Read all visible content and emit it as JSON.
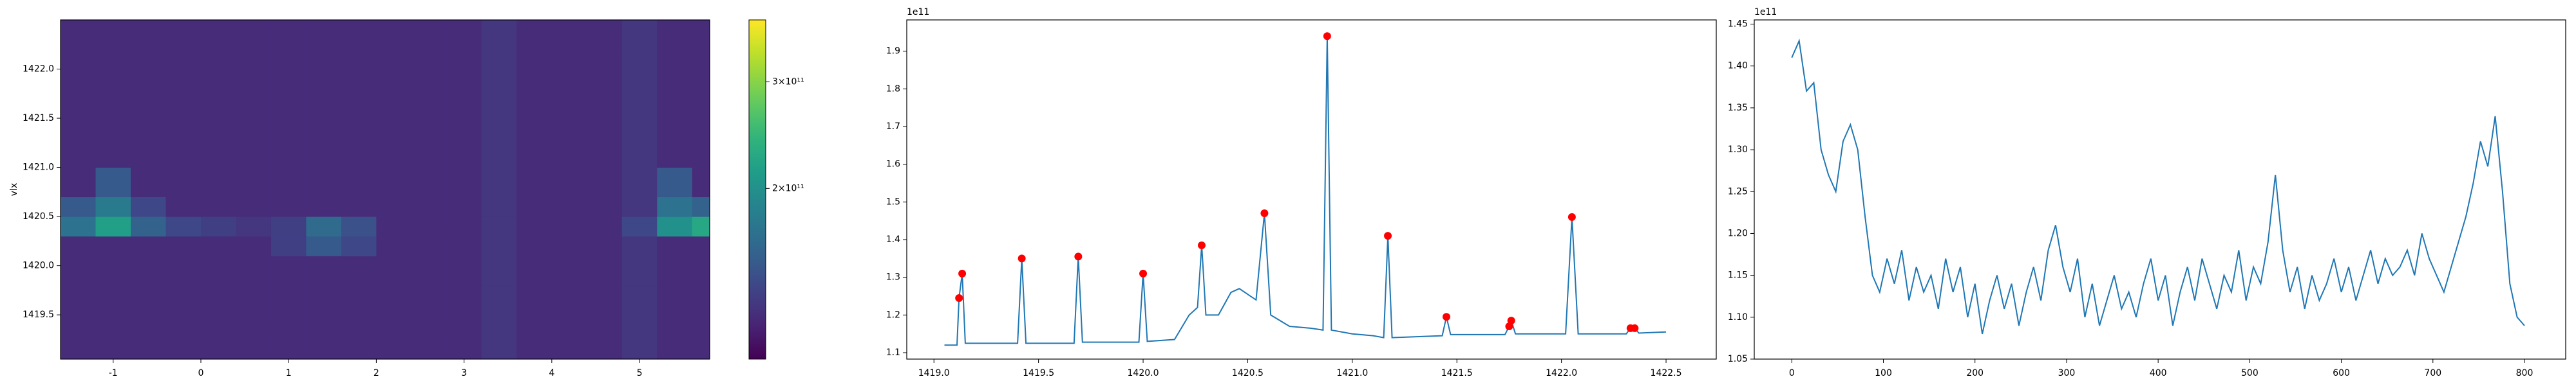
{
  "chart_data": [
    {
      "type": "heatmap",
      "ylabel": "vlx",
      "x_edges": [
        -1.6,
        -1.2,
        -0.8,
        -0.4,
        0,
        0.4,
        0.8,
        1.2,
        1.6,
        2.0,
        2.4,
        2.8,
        3.2,
        3.6,
        4.0,
        4.4,
        4.8,
        5.2,
        5.6,
        5.8
      ],
      "y_edges": [
        1419.05,
        1419.4,
        1419.8,
        1420.1,
        1420.3,
        1420.5,
        1420.7,
        1421.0,
        1421.4,
        1421.8,
        1422.2,
        1422.5
      ],
      "values": [
        [
          80000000000.0,
          80000000000.0,
          80000000000.0,
          80000000000.0,
          80000000000.0,
          80000000000.0,
          80000000000.0,
          80000000000.0,
          80000000000.0,
          80000000000.0,
          80000000000.0,
          80000000000.0,
          90000000000.0,
          80000000000.0,
          80000000000.0,
          80000000000.0,
          90000000000.0,
          80000000000.0,
          80000000000.0
        ],
        [
          80000000000.0,
          80000000000.0,
          80000000000.0,
          80000000000.0,
          80000000000.0,
          80000000000.0,
          80000000000.0,
          80000000000.0,
          80000000000.0,
          80000000000.0,
          80000000000.0,
          80000000000.0,
          90000000000.0,
          80000000000.0,
          80000000000.0,
          80000000000.0,
          90000000000.0,
          80000000000.0,
          80000000000.0
        ],
        [
          80000000000.0,
          80000000000.0,
          80000000000.0,
          80000000000.0,
          80000000000.0,
          80000000000.0,
          80000000000.0,
          80000000000.0,
          80000000000.0,
          80000000000.0,
          80000000000.0,
          80000000000.0,
          90000000000.0,
          80000000000.0,
          80000000000.0,
          80000000000.0,
          90000000000.0,
          80000000000.0,
          80000000000.0
        ],
        [
          80000000000.0,
          80000000000.0,
          80000000000.0,
          80000000000.0,
          80000000000.0,
          80000000000.0,
          100000000000.0,
          130000000000.0,
          110000000000.0,
          80000000000.0,
          80000000000.0,
          80000000000.0,
          90000000000.0,
          80000000000.0,
          80000000000.0,
          80000000000.0,
          90000000000.0,
          80000000000.0,
          80000000000.0
        ],
        [
          160000000000.0,
          220000000000.0,
          140000000000.0,
          110000000000.0,
          100000000000.0,
          90000000000.0,
          100000000000.0,
          150000000000.0,
          120000000000.0,
          80000000000.0,
          80000000000.0,
          80000000000.0,
          90000000000.0,
          80000000000.0,
          80000000000.0,
          80000000000.0,
          110000000000.0,
          200000000000.0,
          230000000000.0
        ],
        [
          130000000000.0,
          170000000000.0,
          110000000000.0,
          80000000000.0,
          80000000000.0,
          80000000000.0,
          80000000000.0,
          80000000000.0,
          80000000000.0,
          80000000000.0,
          80000000000.0,
          80000000000.0,
          90000000000.0,
          80000000000.0,
          80000000000.0,
          80000000000.0,
          90000000000.0,
          160000000000.0,
          140000000000.0
        ],
        [
          80000000000.0,
          130000000000.0,
          80000000000.0,
          80000000000.0,
          80000000000.0,
          80000000000.0,
          80000000000.0,
          80000000000.0,
          80000000000.0,
          80000000000.0,
          80000000000.0,
          80000000000.0,
          90000000000.0,
          80000000000.0,
          80000000000.0,
          80000000000.0,
          90000000000.0,
          130000000000.0,
          80000000000.0
        ],
        [
          80000000000.0,
          80000000000.0,
          80000000000.0,
          80000000000.0,
          80000000000.0,
          80000000000.0,
          80000000000.0,
          80000000000.0,
          80000000000.0,
          80000000000.0,
          80000000000.0,
          80000000000.0,
          90000000000.0,
          80000000000.0,
          80000000000.0,
          80000000000.0,
          90000000000.0,
          80000000000.0,
          80000000000.0
        ],
        [
          80000000000.0,
          80000000000.0,
          80000000000.0,
          80000000000.0,
          80000000000.0,
          80000000000.0,
          80000000000.0,
          80000000000.0,
          80000000000.0,
          80000000000.0,
          80000000000.0,
          80000000000.0,
          90000000000.0,
          80000000000.0,
          80000000000.0,
          80000000000.0,
          90000000000.0,
          80000000000.0,
          80000000000.0
        ],
        [
          80000000000.0,
          80000000000.0,
          80000000000.0,
          80000000000.0,
          80000000000.0,
          80000000000.0,
          80000000000.0,
          80000000000.0,
          80000000000.0,
          80000000000.0,
          80000000000.0,
          80000000000.0,
          90000000000.0,
          80000000000.0,
          80000000000.0,
          80000000000.0,
          90000000000.0,
          80000000000.0,
          80000000000.0
        ],
        [
          80000000000.0,
          80000000000.0,
          80000000000.0,
          80000000000.0,
          80000000000.0,
          80000000000.0,
          80000000000.0,
          80000000000.0,
          80000000000.0,
          80000000000.0,
          80000000000.0,
          80000000000.0,
          90000000000.0,
          80000000000.0,
          80000000000.0,
          80000000000.0,
          90000000000.0,
          80000000000.0,
          80000000000.0
        ]
      ],
      "xlim": [
        -1.6,
        5.8
      ],
      "ylim": [
        1419.05,
        1422.5
      ],
      "xticks": [
        -1,
        0,
        1,
        2,
        3,
        4,
        5
      ],
      "yticks": [
        1419.5,
        {
          "value": 1420.0,
          "label": "1420.0"
        },
        1420.5,
        {
          "value": 1421.0,
          "label": "1421.0"
        },
        1421.5,
        {
          "value": 1422.0,
          "label": "1422.0"
        }
      ],
      "colormap": "viridis",
      "clim": [
        40000000000.0,
        358000000000.0
      ],
      "colorbar_ticks": [
        {
          "value": 200000000000.0,
          "label": "2×10¹¹"
        },
        {
          "value": 300000000000.0,
          "label": "3×10¹¹"
        }
      ]
    },
    {
      "type": "line",
      "offset_label": "1e11",
      "xlim": [
        1418.87,
        1422.74
      ],
      "ylim": [
        1.083,
        1.983
      ],
      "xticks": [
        {
          "value": 1419.0,
          "label": "1419.0"
        },
        1419.5,
        {
          "value": 1420.0,
          "label": "1420.0"
        },
        1420.5,
        {
          "value": 1421.0,
          "label": "1421.0"
        },
        1421.5,
        {
          "value": 1422.0,
          "label": "1422.0"
        },
        1422.5
      ],
      "yticks": [
        1.1,
        1.2,
        1.3,
        1.4,
        1.5,
        1.6,
        1.7,
        1.8,
        1.9
      ],
      "line": {
        "color": "#1f77b4",
        "x": [
          1419.05,
          1419.11,
          1419.12,
          1419.135,
          1419.15,
          1419.4,
          1419.42,
          1419.44,
          1419.67,
          1419.69,
          1419.71,
          1419.98,
          1420.0,
          1420.02,
          1420.15,
          1420.22,
          1420.26,
          1420.28,
          1420.3,
          1420.36,
          1420.42,
          1420.46,
          1420.54,
          1420.58,
          1420.61,
          1420.7,
          1420.8,
          1420.86,
          1420.88,
          1420.9,
          1421.0,
          1421.1,
          1421.15,
          1421.17,
          1421.19,
          1421.43,
          1421.45,
          1421.47,
          1421.73,
          1421.75,
          1421.76,
          1421.78,
          1422.02,
          1422.05,
          1422.08,
          1422.31,
          1422.33,
          1422.35,
          1422.37,
          1422.5
        ],
        "values": [
          1.12,
          1.12,
          1.245,
          1.31,
          1.125,
          1.125,
          1.35,
          1.125,
          1.125,
          1.355,
          1.128,
          1.128,
          1.31,
          1.13,
          1.135,
          1.2,
          1.22,
          1.385,
          1.2,
          1.2,
          1.26,
          1.27,
          1.24,
          1.47,
          1.2,
          1.17,
          1.165,
          1.16,
          1.94,
          1.16,
          1.15,
          1.145,
          1.14,
          1.41,
          1.14,
          1.145,
          1.195,
          1.148,
          1.148,
          1.17,
          1.185,
          1.15,
          1.15,
          1.46,
          1.15,
          1.15,
          1.165,
          1.165,
          1.152,
          1.155
        ]
      },
      "peaks": {
        "color": "#ff0000",
        "x": [
          1419.12,
          1419.135,
          1419.42,
          1419.69,
          1420.0,
          1420.28,
          1420.58,
          1420.88,
          1421.17,
          1421.45,
          1421.75,
          1421.76,
          1422.05,
          1422.33,
          1422.35
        ],
        "values": [
          1.245,
          1.31,
          1.35,
          1.355,
          1.31,
          1.385,
          1.47,
          1.94,
          1.41,
          1.195,
          1.17,
          1.185,
          1.46,
          1.165,
          1.165
        ]
      }
    },
    {
      "type": "line",
      "offset_label": "1e11",
      "xlim": [
        -41,
        845
      ],
      "ylim": [
        1.05,
        1.455
      ],
      "xticks": [
        0,
        100,
        200,
        300,
        400,
        500,
        600,
        700,
        800
      ],
      "yticks": [
        1.05,
        {
          "value": 1.1,
          "label": "1.10"
        },
        1.15,
        {
          "value": 1.2,
          "label": "1.20"
        },
        1.25,
        {
          "value": 1.3,
          "label": "1.30"
        },
        1.35,
        {
          "value": 1.4,
          "label": "1.40"
        },
        1.45
      ],
      "line": {
        "color": "#1f77b4",
        "x": [
          0,
          8,
          16,
          24,
          32,
          40,
          48,
          56,
          64,
          72,
          80,
          88,
          96,
          104,
          112,
          120,
          128,
          136,
          144,
          152,
          160,
          168,
          176,
          184,
          192,
          200,
          208,
          216,
          224,
          232,
          240,
          248,
          256,
          264,
          272,
          280,
          288,
          296,
          304,
          312,
          320,
          328,
          336,
          344,
          352,
          360,
          368,
          376,
          384,
          392,
          400,
          408,
          416,
          424,
          432,
          440,
          448,
          456,
          464,
          472,
          480,
          488,
          496,
          504,
          512,
          520,
          528,
          536,
          544,
          552,
          560,
          568,
          576,
          584,
          592,
          600,
          608,
          616,
          624,
          632,
          640,
          648,
          656,
          664,
          672,
          680,
          688,
          696,
          704,
          712,
          720,
          728,
          736,
          744,
          752,
          760,
          768,
          776,
          784,
          792,
          800
        ],
        "values": [
          1.41,
          1.43,
          1.37,
          1.38,
          1.3,
          1.27,
          1.25,
          1.31,
          1.33,
          1.3,
          1.22,
          1.15,
          1.13,
          1.17,
          1.14,
          1.18,
          1.12,
          1.16,
          1.13,
          1.15,
          1.11,
          1.17,
          1.13,
          1.16,
          1.1,
          1.14,
          1.08,
          1.12,
          1.15,
          1.11,
          1.14,
          1.09,
          1.13,
          1.16,
          1.12,
          1.18,
          1.21,
          1.16,
          1.13,
          1.17,
          1.1,
          1.14,
          1.09,
          1.12,
          1.15,
          1.11,
          1.13,
          1.1,
          1.14,
          1.17,
          1.12,
          1.15,
          1.09,
          1.13,
          1.16,
          1.12,
          1.17,
          1.14,
          1.11,
          1.15,
          1.13,
          1.18,
          1.12,
          1.16,
          1.14,
          1.19,
          1.27,
          1.18,
          1.13,
          1.16,
          1.11,
          1.15,
          1.12,
          1.14,
          1.17,
          1.13,
          1.16,
          1.12,
          1.15,
          1.18,
          1.14,
          1.17,
          1.15,
          1.16,
          1.18,
          1.15,
          1.2,
          1.17,
          1.15,
          1.13,
          1.16,
          1.19,
          1.22,
          1.26,
          1.31,
          1.28,
          1.34,
          1.25,
          1.14,
          1.1,
          1.09
        ]
      }
    }
  ]
}
